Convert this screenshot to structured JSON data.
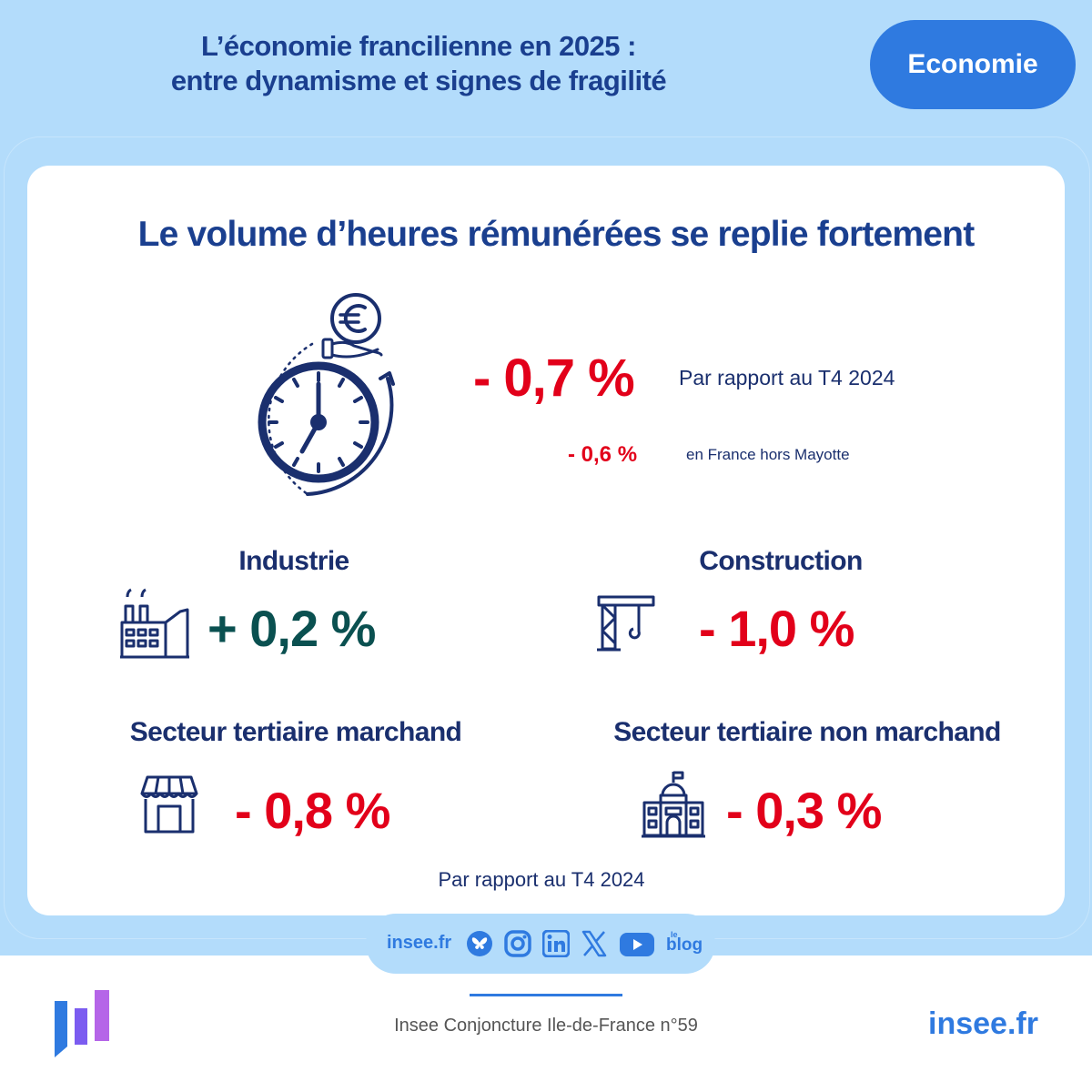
{
  "header": {
    "title_line1": "L’économie francilienne en 2025 :",
    "title_line2": "entre dynamisme et signes de fragilité",
    "badge": "Economie"
  },
  "card": {
    "title": "Le volume d’heures rémunérées se replie fortement",
    "main_value": "- 0,7 %",
    "main_label": "Par rapport au T4 2024",
    "france_value": "- 0,6 %",
    "france_label": "en France hors Mayotte",
    "sectors": [
      {
        "name": "Industrie",
        "value": "+ 0,2 %",
        "icon": "factory-icon"
      },
      {
        "name": "Construction",
        "value": "- 1,0 %",
        "icon": "crane-icon"
      },
      {
        "name": "Secteur tertiaire marchand",
        "value": "- 0,8 %",
        "icon": "shop-icon"
      },
      {
        "name": "Secteur tertiaire non marchand",
        "value": "- 0,3 %",
        "icon": "public-building-icon"
      }
    ],
    "footnote": "Par rapport au T4 2024"
  },
  "social": {
    "site": "insee.fr",
    "icons": [
      "bluesky-icon",
      "instagram-icon",
      "linkedin-icon",
      "x-icon",
      "youtube-icon",
      "blog-icon"
    ],
    "blog_small": "le",
    "blog_label": "blog"
  },
  "footer": {
    "publication": "Insee Conjoncture Ile-de-France n°59",
    "site": "insee.fr"
  },
  "colors": {
    "background": "#b3dcfb",
    "title_blue": "#1a3f8f",
    "accent_blue": "#2f7ae0",
    "negative_red": "#e2001a",
    "positive_green": "#0a5050"
  }
}
